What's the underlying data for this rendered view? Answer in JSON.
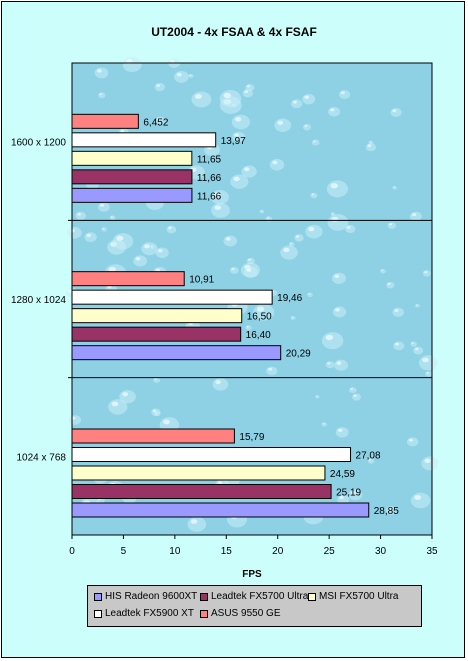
{
  "chart_data": {
    "type": "bar",
    "orientation": "horizontal",
    "title": "UT2004 - 4x FSAA & 4x FSAF",
    "xlabel": "FPS",
    "ylabel": "",
    "xlim": [
      0,
      35
    ],
    "xticks": [
      0,
      5,
      10,
      15,
      20,
      25,
      30,
      35
    ],
    "categories": [
      "1600 x 1200",
      "1280 x 1024",
      "1024 x 768"
    ],
    "series": [
      {
        "name": "HIS Radeon 9600XT",
        "color": "#9999ff",
        "values": [
          11.66,
          20.29,
          28.85
        ],
        "labels": [
          "11,66",
          "20,29",
          "28,85"
        ]
      },
      {
        "name": "Leadtek FX5700 Ultra",
        "color": "#993366",
        "values": [
          11.66,
          16.4,
          25.19
        ],
        "labels": [
          "11,66",
          "16,40",
          "25,19"
        ]
      },
      {
        "name": "MSI FX5700 Ultra",
        "color": "#ffffcc",
        "values": [
          11.65,
          16.5,
          24.59
        ],
        "labels": [
          "11,65",
          "16,50",
          "24,59"
        ]
      },
      {
        "name": "Leadtek FX5900 XT",
        "color": "#ffffff",
        "values": [
          13.97,
          19.46,
          27.08
        ],
        "labels": [
          "13,97",
          "19,46",
          "27,08"
        ]
      },
      {
        "name": "ASUS 9550 GE",
        "color": "#ff8080",
        "values": [
          6.452,
          10.91,
          15.79
        ],
        "labels": [
          "6,452",
          "10,91",
          "15,79"
        ]
      }
    ],
    "plot_background": "#8ed0e4",
    "legend_position": "bottom",
    "grid": true
  }
}
